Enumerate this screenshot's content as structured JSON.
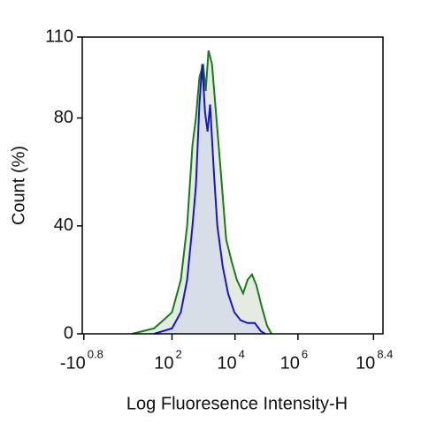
{
  "chart_data": {
    "type": "area",
    "x_label": "Log Fluoresence Intensity-H",
    "y_label": "Count (%)",
    "xlim": [
      -0.85,
      8.7
    ],
    "ylim": [
      0,
      110
    ],
    "xticks": [
      {
        "value": -0.8,
        "label": "-10",
        "power": "0.8"
      },
      {
        "value": 2,
        "label": "10",
        "power": "2"
      },
      {
        "value": 4,
        "label": "10",
        "power": "4"
      },
      {
        "value": 6,
        "label": "10",
        "power": "6"
      },
      {
        "value": 8.4,
        "label": "10",
        "power": "8.4"
      }
    ],
    "yticks": [
      0,
      40,
      80,
      110
    ],
    "series": [
      {
        "color": "#1a7a1a",
        "fill": "#dfe6d8",
        "x": [
          0.73,
          1.43,
          1.72,
          2.0,
          2.28,
          2.48,
          2.65,
          2.76,
          2.87,
          2.99,
          3.07,
          3.16,
          3.27,
          3.41,
          3.55,
          3.72,
          3.89,
          4.06,
          4.26,
          4.4,
          4.54,
          4.68,
          4.85,
          5.02,
          5.16
        ],
        "values": [
          0,
          2,
          5,
          8,
          20,
          40,
          70,
          80,
          95,
          100,
          90,
          105,
          100,
          80,
          60,
          35,
          27,
          20,
          15,
          20,
          22,
          18,
          10,
          3,
          0
        ]
      },
      {
        "color": "#1515cc",
        "fill": "#d3dbe8",
        "x": [
          1.43,
          2.0,
          2.28,
          2.48,
          2.65,
          2.76,
          2.87,
          2.96,
          3.05,
          3.13,
          3.21,
          3.33,
          3.44,
          3.61,
          3.78,
          3.98,
          4.18,
          4.4,
          4.63,
          4.82,
          4.96
        ],
        "values": [
          0,
          2,
          8,
          20,
          40,
          55,
          85,
          100,
          82,
          75,
          85,
          60,
          40,
          25,
          15,
          8,
          5,
          4,
          4,
          1,
          0
        ]
      }
    ]
  }
}
